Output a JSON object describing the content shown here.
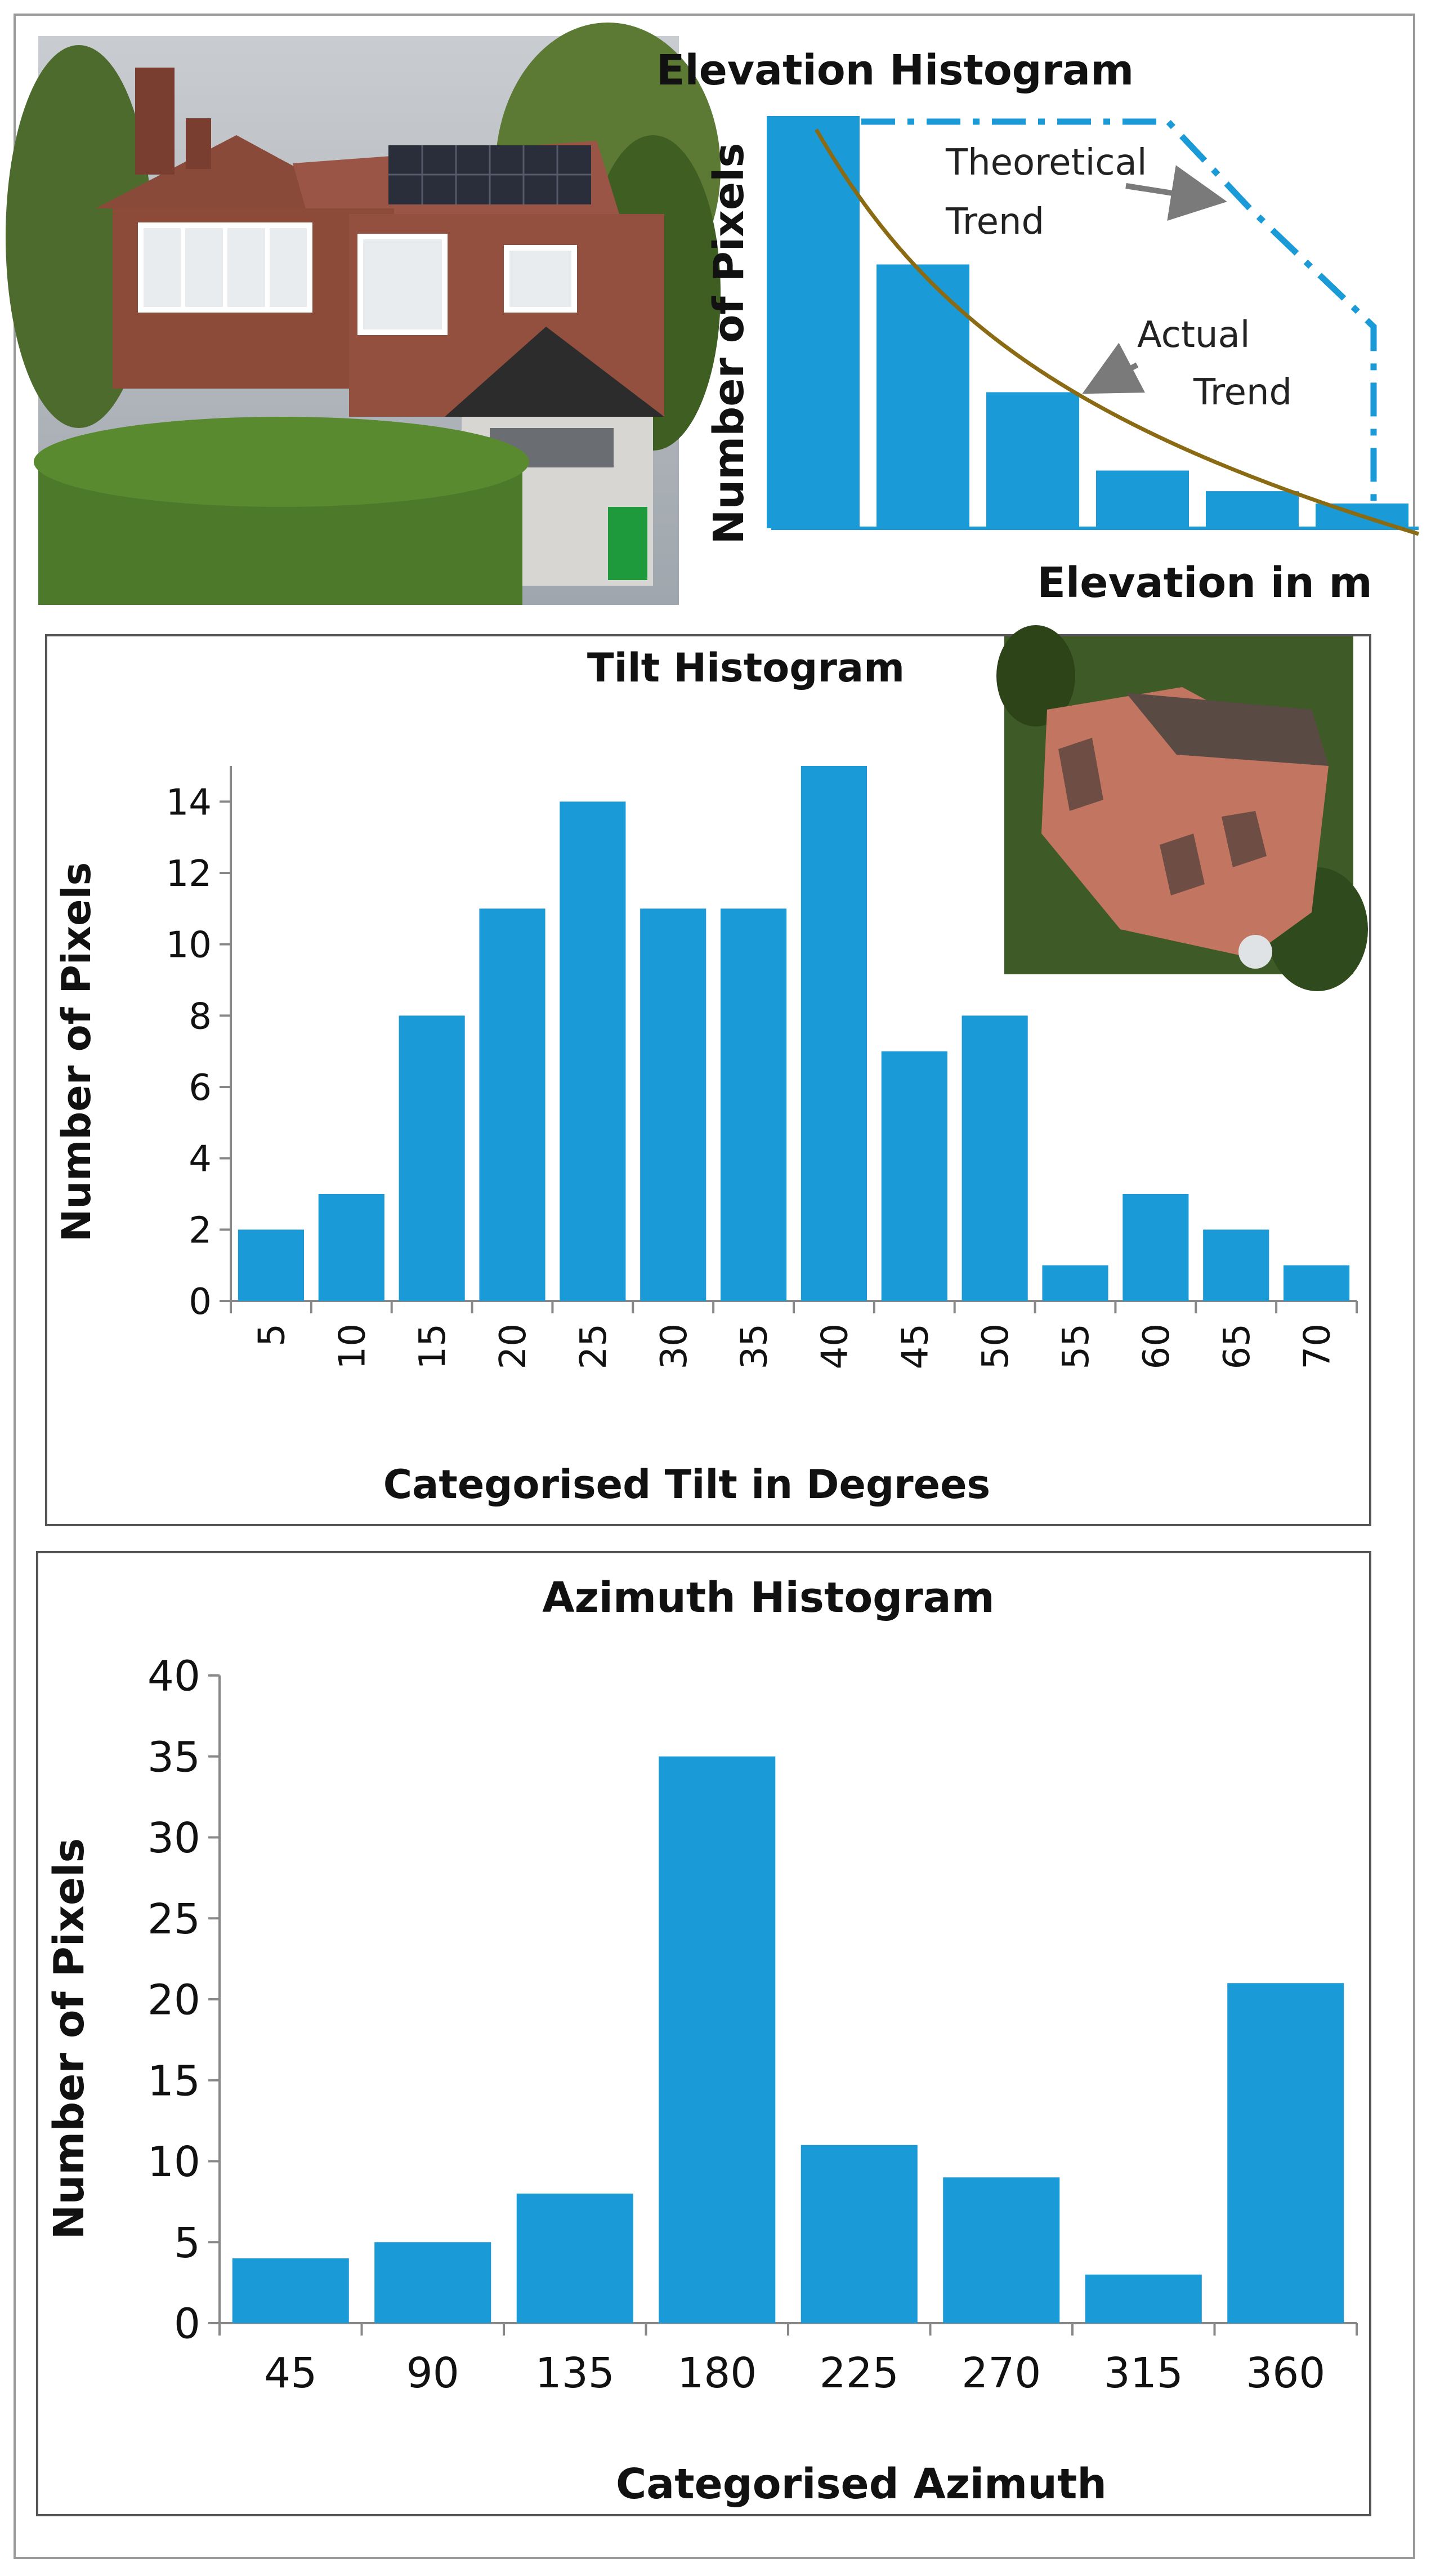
{
  "colors": {
    "bar": "#1a9ad6",
    "trend": "#8b6a14",
    "axis": "#888888",
    "arrow": "#7a7a7a"
  },
  "images": {
    "house_photo": "photo of house with solar panels",
    "aerial_photo": "aerial photo of roof"
  },
  "chart_data": [
    {
      "type": "bar",
      "title": "Elevation Histogram",
      "xlabel": "Elevation in m",
      "ylabel": "Number of Pixels",
      "values": [
        100,
        64,
        33,
        14,
        9,
        6
      ],
      "ylim": [
        0,
        100
      ],
      "annotations": {
        "theoretical_line1": "Theoretical",
        "theoretical_line2": "Trend",
        "actual_line1": "Actual",
        "actual_line2": "Trend"
      }
    },
    {
      "type": "bar",
      "title": "Tilt Histogram",
      "xlabel": "Categorised Tilt in Degrees",
      "ylabel": "Number of Pixels",
      "categories": [
        "5",
        "10",
        "15",
        "20",
        "25",
        "30",
        "35",
        "40",
        "45",
        "50",
        "55",
        "60",
        "65",
        "70"
      ],
      "values": [
        2,
        3,
        8,
        11,
        14,
        11,
        11,
        15,
        7,
        8,
        1,
        3,
        2,
        1
      ],
      "ylim": [
        0,
        15
      ],
      "yticks": [
        "0",
        "2",
        "4",
        "6",
        "8",
        "10",
        "12",
        "14"
      ]
    },
    {
      "type": "bar",
      "title": "Azimuth Histogram",
      "xlabel": "Categorised Azimuth",
      "ylabel": "Number of Pixels",
      "categories": [
        "45",
        "90",
        "135",
        "180",
        "225",
        "270",
        "315",
        "360"
      ],
      "values": [
        4,
        5,
        8,
        35,
        11,
        9,
        3,
        21
      ],
      "ylim": [
        0,
        40
      ],
      "yticks": [
        "0",
        "5",
        "10",
        "15",
        "20",
        "25",
        "30",
        "35",
        "40"
      ]
    }
  ]
}
